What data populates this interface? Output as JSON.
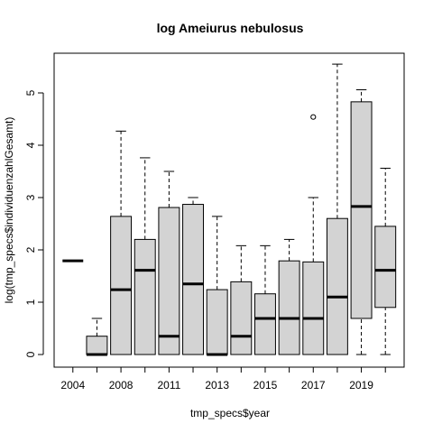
{
  "chart_data": {
    "type": "boxplot",
    "title": "log Ameiurus nebulosus",
    "xlabel": "tmp_specs$year",
    "ylabel": "log(tmp_specs$individuenzahlGesamt)",
    "ylim": [
      0,
      5.6
    ],
    "y_ticks": [
      0,
      1,
      2,
      3,
      4,
      5
    ],
    "x_tick_labels": [
      "2004",
      "2008",
      "2011",
      "2013",
      "2015",
      "2017",
      "2019"
    ],
    "box_fill": "#d3d3d3",
    "boxes": [
      {
        "year": "2004",
        "whisker_low": 1.79,
        "q1": 1.79,
        "median": 1.79,
        "q3": 1.79,
        "whisker_high": 1.79,
        "outliers": []
      },
      {
        "year": "2006",
        "whisker_low": 0,
        "q1": 0,
        "median": 0,
        "q3": 0.35,
        "whisker_high": 0.69,
        "outliers": []
      },
      {
        "year": "2008",
        "whisker_low": 0,
        "q1": 0,
        "median": 1.24,
        "q3": 2.64,
        "whisker_high": 4.27,
        "outliers": []
      },
      {
        "year": "2009",
        "whisker_low": 0,
        "q1": 0,
        "median": 1.61,
        "q3": 2.2,
        "whisker_high": 3.76,
        "outliers": []
      },
      {
        "year": "2011",
        "whisker_low": 0,
        "q1": 0,
        "median": 0.35,
        "q3": 2.81,
        "whisker_high": 3.5,
        "outliers": []
      },
      {
        "year": "2012",
        "whisker_low": 0,
        "q1": 0,
        "median": 1.35,
        "q3": 2.87,
        "whisker_high": 3.0,
        "outliers": []
      },
      {
        "year": "2013",
        "whisker_low": 0,
        "q1": 0,
        "median": 0,
        "q3": 1.24,
        "whisker_high": 2.64,
        "outliers": []
      },
      {
        "year": "2014",
        "whisker_low": 0,
        "q1": 0,
        "median": 0.35,
        "q3": 1.39,
        "whisker_high": 2.08,
        "outliers": []
      },
      {
        "year": "2015",
        "whisker_low": 0,
        "q1": 0,
        "median": 0.69,
        "q3": 1.16,
        "whisker_high": 2.08,
        "outliers": []
      },
      {
        "year": "2016",
        "whisker_low": 0,
        "q1": 0,
        "median": 0.69,
        "q3": 1.79,
        "whisker_high": 2.2,
        "outliers": []
      },
      {
        "year": "2017",
        "whisker_low": 0,
        "q1": 0,
        "median": 0.69,
        "q3": 1.77,
        "whisker_high": 3.0,
        "outliers": [
          4.54
        ]
      },
      {
        "year": "2018",
        "whisker_low": 0,
        "q1": 0,
        "median": 1.1,
        "q3": 2.6,
        "whisker_high": 5.55,
        "outliers": []
      },
      {
        "year": "2019",
        "whisker_low": 0,
        "q1": 0.69,
        "median": 2.83,
        "q3": 4.83,
        "whisker_high": 5.06,
        "outliers": []
      },
      {
        "year": "2020",
        "whisker_low": 0,
        "q1": 0.9,
        "median": 1.61,
        "q3": 2.45,
        "whisker_high": 3.56,
        "outliers": []
      }
    ]
  }
}
